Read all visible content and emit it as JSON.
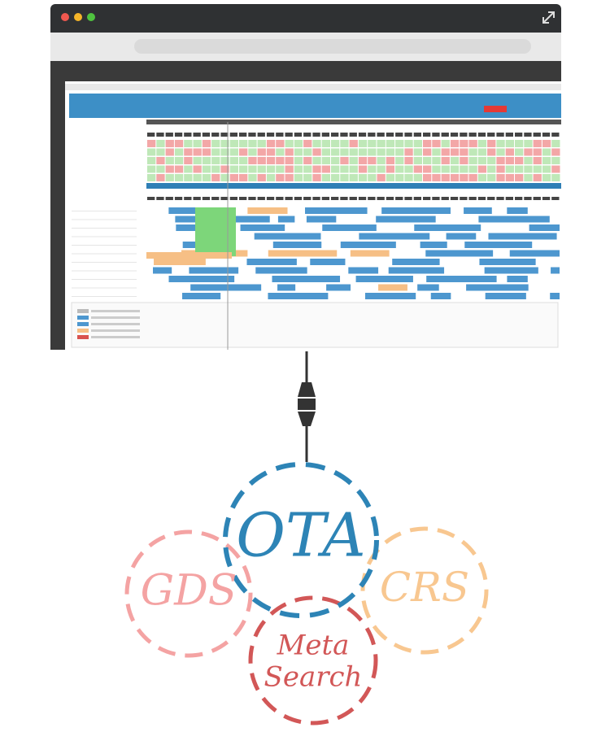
{
  "diagram": {
    "nodes": [
      {
        "label": "OTA"
      },
      {
        "label": "GDS"
      },
      {
        "label": "CRS"
      },
      {
        "label": "Meta Search"
      }
    ]
  }
}
